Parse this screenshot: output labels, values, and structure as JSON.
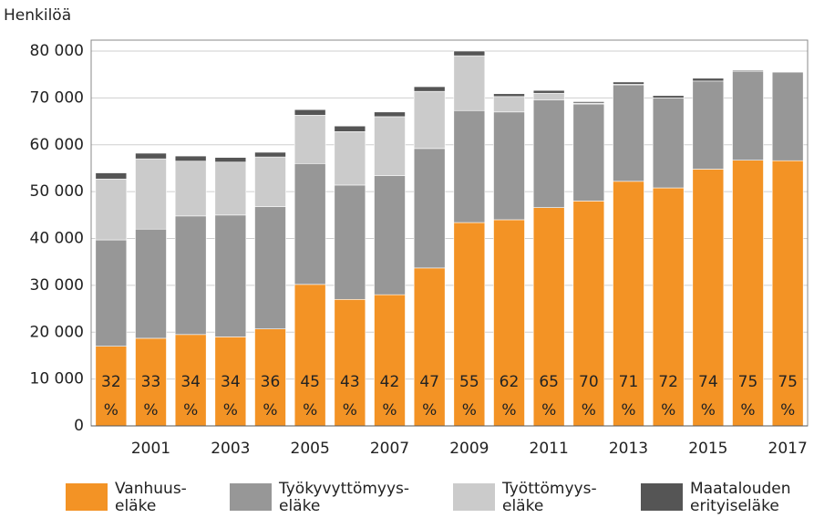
{
  "chart_data": {
    "type": "stacked_bar",
    "ylabel": "Henkilöä",
    "categories": [
      null,
      "2001",
      null,
      "2003",
      null,
      "2005",
      null,
      "2007",
      null,
      "2009",
      null,
      "2011",
      null,
      "2013",
      null,
      "2015",
      null,
      "2017"
    ],
    "series": [
      {
        "name": "Vanhuus-\neläke",
        "color": "#f39325",
        "values": [
          17000,
          18700,
          19500,
          19000,
          20700,
          30200,
          27000,
          28000,
          33700,
          43400,
          44000,
          46600,
          48000,
          52200,
          50800,
          54800,
          56700,
          56600
        ]
      },
      {
        "name": "Työkyvyttömyys-\neläke",
        "color": "#979797",
        "values": [
          22700,
          23300,
          25300,
          26000,
          26100,
          25800,
          24400,
          25400,
          25500,
          23900,
          23000,
          23000,
          20700,
          20600,
          19200,
          18800,
          19000,
          18900
        ]
      },
      {
        "name": "Työttömyys-\neläke",
        "color": "#cbcbcb",
        "values": [
          13000,
          15000,
          11700,
          11300,
          10600,
          10300,
          11400,
          12600,
          12200,
          11700,
          3300,
          1400,
          200,
          100,
          0,
          0,
          0,
          0
        ]
      },
      {
        "name": "Maatalouden\nerityiseläke",
        "color": "#555555",
        "values": [
          1300,
          1200,
          1100,
          1000,
          1000,
          1200,
          1200,
          1000,
          1000,
          1000,
          600,
          600,
          300,
          500,
          500,
          600,
          200,
          0
        ]
      }
    ],
    "shares": [
      32,
      33,
      34,
      34,
      36,
      45,
      43,
      42,
      47,
      55,
      62,
      65,
      70,
      71,
      72,
      74,
      75,
      75
    ],
    "share_unit": "%",
    "ylim": [
      0,
      80000
    ],
    "yticks": [
      0,
      {
        "value": 10000,
        "label": "10 000"
      },
      {
        "value": 20000,
        "label": "20 000"
      },
      {
        "value": 30000,
        "label": "30 000"
      },
      {
        "value": 40000,
        "label": "40 000"
      },
      {
        "value": 50000,
        "label": "50 000"
      },
      {
        "value": 60000,
        "label": "60 000"
      },
      {
        "value": 70000,
        "label": "70 000"
      },
      {
        "value": 80000,
        "label": "80 000"
      }
    ],
    "grid": true
  }
}
